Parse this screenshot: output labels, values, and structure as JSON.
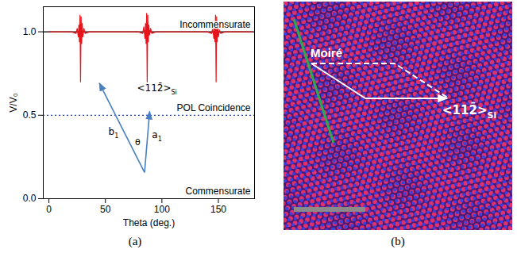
{
  "chart_data": {
    "type": "line",
    "caption": "(a)",
    "x_label": "Theta (deg.)",
    "y_label": "V/V₀",
    "xlim": [
      -5,
      182
    ],
    "xticks": [
      0,
      50,
      100,
      150
    ],
    "ylim": [
      0,
      1.15
    ],
    "yticks": [
      {
        "value": 0,
        "label": "0.0"
      },
      {
        "value": 0.5,
        "label": "0.5"
      },
      {
        "value": 1,
        "label": "1.0"
      }
    ],
    "grid": false,
    "x": [
      0,
      20,
      24,
      25,
      26,
      26.5,
      27,
      27.5,
      28,
      28.5,
      29,
      29.5,
      30,
      31,
      32,
      36,
      79,
      83,
      84,
      85,
      85.5,
      86,
      86.5,
      87,
      87.5,
      88,
      88.5,
      89,
      90,
      91,
      95,
      140,
      144,
      145,
      146,
      146.5,
      147,
      147.5,
      148,
      148.5,
      149,
      149.5,
      150,
      151,
      152,
      156,
      180
    ],
    "series": [
      {
        "color": "#e8141c",
        "line_style": "solid",
        "values": [
          1,
          1,
          0.99,
          1.02,
          0.97,
          1.04,
          0.94,
          1.1,
          0.7,
          1.09,
          0.93,
          1.05,
          0.97,
          1.02,
          0.99,
          1,
          1,
          0.99,
          1.03,
          0.96,
          1.05,
          0.93,
          1.11,
          0.7,
          1.1,
          0.94,
          1.04,
          0.98,
          1.02,
          0.99,
          1,
          1,
          0.99,
          1.02,
          0.96,
          1.04,
          0.94,
          1.1,
          0.7,
          1.09,
          0.94,
          1.05,
          0.97,
          1.01,
          0.99,
          1,
          1
        ]
      }
    ],
    "reference_lines": [
      {
        "value": 1,
        "label": "Incommensurate",
        "color": "#000000",
        "line_style": "solid"
      },
      {
        "value": 0.5,
        "label": "POL Coincidence",
        "color": "#2040c0",
        "line_style": "dotted"
      },
      {
        "value": 0,
        "label": "Commensurate",
        "color": "#000000",
        "line_style": "dotted"
      }
    ],
    "inset": {
      "direction": {
        "main": "<112̄>",
        "sub": "Si"
      },
      "a": {
        "main": "a",
        "sub": "1"
      },
      "b": {
        "main": "b",
        "sub": "1"
      },
      "angle": "θ",
      "color": "#4a7fc0"
    }
  },
  "image_panel": {
    "caption": "(b)",
    "moire_label": "Moiré",
    "direction": {
      "main": "<112̄>",
      "sub": "Si"
    }
  }
}
